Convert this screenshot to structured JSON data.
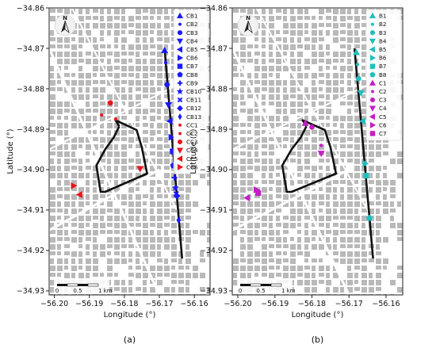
{
  "panels": [
    {
      "caption": "(a)",
      "xlabel": "Longitude (°)",
      "ylabel": "Latitude (°)",
      "x_ticks": [
        "−56.20",
        "−56.19",
        "−56.18",
        "−56.17",
        "−56.16"
      ],
      "y_ticks": [
        "−34.86",
        "−34.87",
        "−34.88",
        "−34.89",
        "−34.90",
        "−34.91",
        "−34.92",
        "−34.93"
      ],
      "scalebar": {
        "label_0": "0",
        "label_mid": "0.5",
        "label_end": "1 km"
      },
      "north_label": "N",
      "legend": [
        {
          "label": "CB1",
          "marker": "triangle-up",
          "color": "#1a1aff"
        },
        {
          "label": "CB2",
          "marker": "small-dot",
          "color": "#1a1aff"
        },
        {
          "label": "CB3",
          "marker": "circle",
          "color": "#1a1aff"
        },
        {
          "label": "CB4",
          "marker": "triangle-down",
          "color": "#1a1aff"
        },
        {
          "label": "CB5",
          "marker": "triangle-left",
          "color": "#1a1aff"
        },
        {
          "label": "CB6",
          "marker": "triangle-right",
          "color": "#1a1aff"
        },
        {
          "label": "CB7",
          "marker": "square",
          "color": "#1a1aff"
        },
        {
          "label": "CB8",
          "marker": "pentagon",
          "color": "#1a1aff"
        },
        {
          "label": "CB9",
          "marker": "plus",
          "color": "#1a1aff"
        },
        {
          "label": "CB10",
          "marker": "star",
          "color": "#1a1aff"
        },
        {
          "label": "CB11",
          "marker": "x",
          "color": "#1a1aff"
        },
        {
          "label": "CB12",
          "marker": "diamond",
          "color": "#1a1aff"
        },
        {
          "label": "CB13",
          "marker": "thin-diamond",
          "color": "#1a1aff"
        },
        {
          "label": "CC1",
          "marker": "small-dot",
          "color": "#e8171c"
        },
        {
          "label": "CC2",
          "marker": "small-dot",
          "color": "#e8171c"
        },
        {
          "label": "CC3",
          "marker": "circle",
          "color": "#e8171c"
        },
        {
          "label": "CC4",
          "marker": "triangle-down",
          "color": "#e8171c"
        },
        {
          "label": "CC5",
          "marker": "triangle-left",
          "color": "#e8171c"
        },
        {
          "label": "CC6",
          "marker": "triangle-right",
          "color": "#e8171c"
        }
      ],
      "route_line": [
        [
          -56.1685,
          -34.87
        ],
        [
          -56.1635,
          -34.922
        ]
      ],
      "loop_path": [
        [
          -56.1815,
          -34.8893
        ],
        [
          -56.1825,
          -34.8878
        ],
        [
          -56.1765,
          -34.8902
        ],
        [
          -56.175,
          -34.8945
        ],
        [
          -56.1735,
          -34.901
        ],
        [
          -56.1855,
          -34.9055
        ],
        [
          -56.1868,
          -34.9055
        ],
        [
          -56.188,
          -34.899
        ],
        [
          -56.1855,
          -34.895
        ],
        [
          -56.183,
          -34.892
        ],
        [
          -56.1815,
          -34.8893
        ]
      ],
      "points": [
        {
          "label": "CB1",
          "x": -56.1685,
          "y": -34.8705
        },
        {
          "label": "CB2",
          "x": -56.1682,
          "y": -34.8735
        },
        {
          "label": "CB3",
          "x": -56.1678,
          "y": -34.879
        },
        {
          "label": "CB4",
          "x": -56.1674,
          "y": -34.884
        },
        {
          "label": "CB5",
          "x": -56.167,
          "y": -34.888
        },
        {
          "label": "CB6",
          "x": -56.1666,
          "y": -34.892
        },
        {
          "label": "CB7",
          "x": -56.1662,
          "y": -34.8955
        },
        {
          "label": "CB8",
          "x": -56.166,
          "y": -34.899
        },
        {
          "label": "CB9",
          "x": -56.1657,
          "y": -34.902
        },
        {
          "label": "CB10",
          "x": -56.1654,
          "y": -34.9045
        },
        {
          "label": "CB11",
          "x": -56.1652,
          "y": -34.906
        },
        {
          "label": "CB12",
          "x": -56.165,
          "y": -34.9065
        },
        {
          "label": "CB13",
          "x": -56.1645,
          "y": -34.9125
        },
        {
          "label": "CC1",
          "x": -56.1865,
          "y": -34.8865
        },
        {
          "label": "CC2",
          "x": -56.1825,
          "y": -34.8875
        },
        {
          "label": "CC3",
          "x": -56.184,
          "y": -34.8835
        },
        {
          "label": "CC4",
          "x": -56.1755,
          "y": -34.8998
        },
        {
          "label": "CC5",
          "x": -56.1928,
          "y": -34.9062
        },
        {
          "label": "CC6",
          "x": -56.1945,
          "y": -34.904
        }
      ]
    },
    {
      "caption": "(b)",
      "xlabel": "Longitude (°)",
      "ylabel": "Latitude (°)",
      "x_ticks": [
        "−56.20",
        "−56.19",
        "−56.18",
        "−56.17",
        "−56.16"
      ],
      "y_ticks": [
        "−34.86",
        "−34.87",
        "−34.88",
        "−34.89",
        "−34.90",
        "−34.91",
        "−34.92",
        "−34.93"
      ],
      "scalebar": {
        "label_0": "0",
        "label_mid": "0.5",
        "label_end": "1 km"
      },
      "north_label": "N",
      "legend": [
        {
          "label": "B1",
          "marker": "triangle-up",
          "color": "#1fbfbf"
        },
        {
          "label": "B2",
          "marker": "small-dot",
          "color": "#1fbfbf"
        },
        {
          "label": "B3",
          "marker": "circle",
          "color": "#1fbfbf"
        },
        {
          "label": "B4",
          "marker": "triangle-down",
          "color": "#1fbfbf"
        },
        {
          "label": "B5",
          "marker": "triangle-left",
          "color": "#1fbfbf"
        },
        {
          "label": "B6",
          "marker": "triangle-right",
          "color": "#1fbfbf"
        },
        {
          "label": "B7",
          "marker": "square",
          "color": "#1fbfbf"
        },
        {
          "label": "B8",
          "marker": "pentagon",
          "color": "#1fbfbf"
        },
        {
          "label": "C1",
          "marker": "triangle-up",
          "color": "#c41ec4"
        },
        {
          "label": "C2",
          "marker": "small-dot",
          "color": "#c41ec4"
        },
        {
          "label": "C3",
          "marker": "circle",
          "color": "#c41ec4"
        },
        {
          "label": "C4",
          "marker": "triangle-down",
          "color": "#c41ec4"
        },
        {
          "label": "C5",
          "marker": "triangle-left",
          "color": "#c41ec4"
        },
        {
          "label": "C6",
          "marker": "triangle-right",
          "color": "#c41ec4"
        },
        {
          "label": "C7",
          "marker": "square",
          "color": "#c41ec4"
        }
      ],
      "route_line": [
        [
          -56.1685,
          -34.87
        ],
        [
          -56.1635,
          -34.922
        ]
      ],
      "loop_path": [
        [
          -56.1815,
          -34.8893
        ],
        [
          -56.1825,
          -34.8878
        ],
        [
          -56.1765,
          -34.8902
        ],
        [
          -56.175,
          -34.8945
        ],
        [
          -56.1735,
          -34.901
        ],
        [
          -56.1855,
          -34.9055
        ],
        [
          -56.1868,
          -34.9055
        ],
        [
          -56.188,
          -34.899
        ],
        [
          -56.1855,
          -34.895
        ],
        [
          -56.183,
          -34.892
        ],
        [
          -56.1815,
          -34.8893
        ]
      ],
      "points": [
        {
          "label": "B1",
          "x": -56.168,
          "y": -34.871
        },
        {
          "label": "B2",
          "x": -56.1677,
          "y": -34.874
        },
        {
          "label": "B3",
          "x": -56.1674,
          "y": -34.8775
        },
        {
          "label": "B4",
          "x": -56.1668,
          "y": -34.881
        },
        {
          "label": "B5",
          "x": -56.1663,
          "y": -34.888
        },
        {
          "label": "B6",
          "x": -56.1656,
          "y": -34.8985
        },
        {
          "label": "B7",
          "x": -56.1654,
          "y": -34.9015
        },
        {
          "label": "B8",
          "x": -56.1645,
          "y": -34.912
        },
        {
          "label": "C1",
          "x": -56.1818,
          "y": -34.8885
        },
        {
          "label": "C2",
          "x": -56.1775,
          "y": -34.894
        },
        {
          "label": "C3",
          "x": -56.18,
          "y": -34.8895
        },
        {
          "label": "C4",
          "x": -56.1775,
          "y": -34.896
        },
        {
          "label": "C5",
          "x": -56.1975,
          "y": -34.907
        },
        {
          "label": "C6",
          "x": -56.195,
          "y": -34.905
        },
        {
          "label": "C7",
          "x": -56.1945,
          "y": -34.9058
        }
      ]
    }
  ],
  "colors": {
    "map_block": "#b9b9b9",
    "road": "#ffffff",
    "route": "#111111"
  }
}
